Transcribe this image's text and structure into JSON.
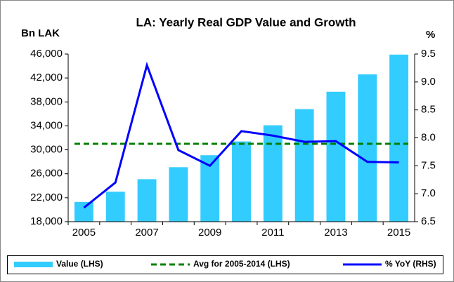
{
  "chart_data": {
    "type": "bar",
    "title": "LA: Yearly Real GDP Value and Growth",
    "y_label": "Bn LAK",
    "y2_label": "%",
    "categories": [
      "2005",
      null,
      "2007",
      null,
      "2009",
      null,
      "2011",
      null,
      "2013",
      null,
      "2015"
    ],
    "series": [
      {
        "name": "Value (LHS)",
        "type": "bar",
        "color": "#33ccff",
        "values": [
          21300,
          23000,
          25100,
          27100,
          29100,
          31400,
          34100,
          36800,
          39700,
          42600,
          45900
        ]
      },
      {
        "name": "Avg for 2005-2014 (LHS)",
        "type": "hline",
        "color": "#008000",
        "value": 31000
      },
      {
        "name": "% YoY (RHS)",
        "type": "line",
        "axis": "y2",
        "color": "#0000ff",
        "values": [
          6.75,
          7.2,
          9.3,
          7.78,
          7.5,
          8.12,
          8.04,
          7.93,
          7.94,
          7.57,
          7.56
        ]
      }
    ],
    "ylim": [
      18000,
      46000
    ],
    "yticks": [
      {
        "value": 18000,
        "label": "18,000"
      },
      {
        "value": 22000,
        "label": "22,000"
      },
      {
        "value": 26000,
        "label": "26,000"
      },
      {
        "value": 30000,
        "label": "30,000"
      },
      {
        "value": 34000,
        "label": "34,000"
      },
      {
        "value": 38000,
        "label": "38,000"
      },
      {
        "value": 42000,
        "label": "42,000"
      },
      {
        "value": 46000,
        "label": "46,000"
      }
    ],
    "y2lim": [
      6.5,
      9.5
    ],
    "y2ticks": [
      6.5,
      {
        "value": 7,
        "label": "7.0"
      },
      7.5,
      {
        "value": 8,
        "label": "8.0"
      },
      8.5,
      {
        "value": 9,
        "label": "9.0"
      },
      9.5
    ],
    "legend": "bottom"
  }
}
